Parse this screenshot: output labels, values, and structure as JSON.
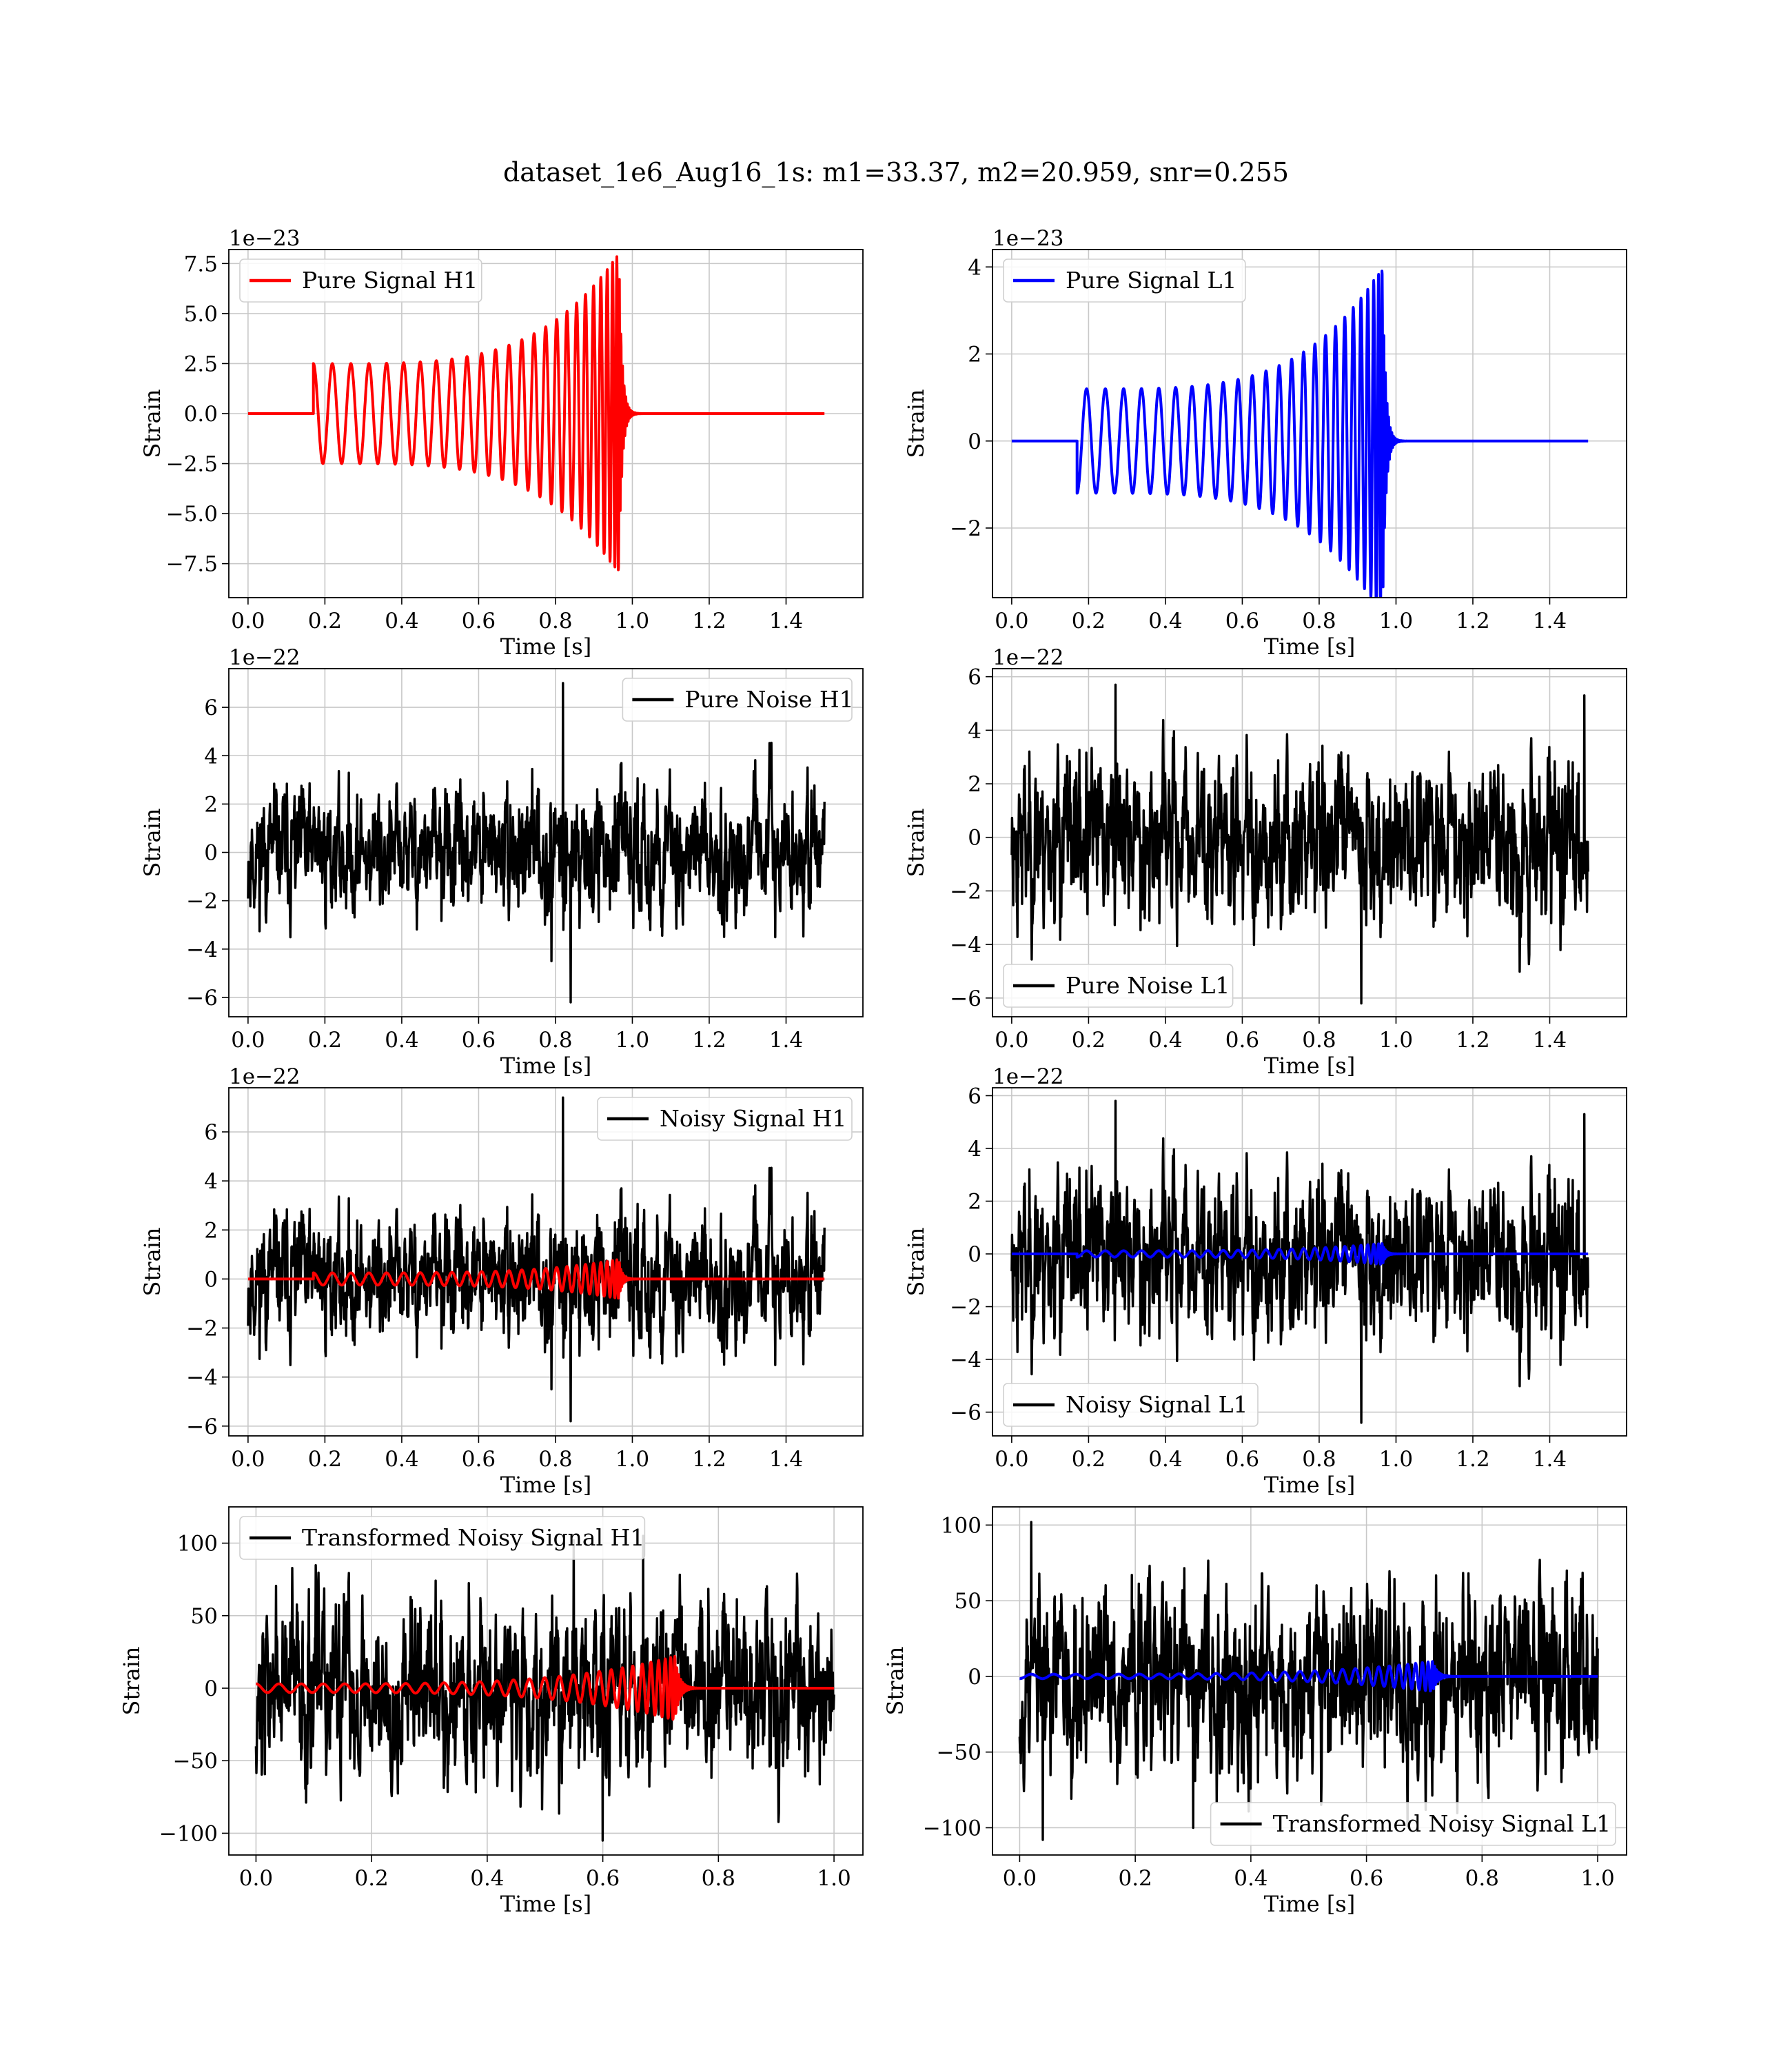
{
  "figure": {
    "title": "dataset_1e6_Aug16_1s: m1=33.37, m2=20.959, snr=0.255",
    "colors": {
      "h1_signal": "#ff0000",
      "l1_signal": "#0000ff",
      "noise": "#000000",
      "grid": "#c8c8c8"
    }
  },
  "chart_data": [
    {
      "type": "line",
      "title": "",
      "xlabel": "Time [s]",
      "ylabel": "Strain",
      "scale_label": "1e−23",
      "xlim": [
        -0.05,
        1.6
      ],
      "ylim": [
        -9.2,
        8.2
      ],
      "xticks": [
        0.0,
        0.2,
        0.4,
        0.6,
        0.8,
        1.0,
        1.2,
        1.4
      ],
      "xtick_labels": [
        "0.0",
        "0.2",
        "0.4",
        "0.6",
        "0.8",
        "1.0",
        "1.2",
        "1.4"
      ],
      "yticks": [
        -7.5,
        -5.0,
        -2.5,
        0.0,
        2.5,
        5.0,
        7.5
      ],
      "ytick_labels": [
        "−7.5",
        "−5.0",
        "−2.5",
        "0.0",
        "2.5",
        "5.0",
        "7.5"
      ],
      "grid": true,
      "legend_position": "upper-left",
      "series": [
        {
          "name": "Pure Signal H1",
          "kind": "chirp",
          "color": "#ff0000",
          "t_start": 0.17,
          "t_merge": 0.965,
          "t_end": 1.5,
          "f0": 20,
          "amp_start": 2.5,
          "amp_peak": 8.0,
          "phase": 1.57
        }
      ]
    },
    {
      "type": "line",
      "title": "",
      "xlabel": "Time [s]",
      "ylabel": "Strain",
      "scale_label": "1e−23",
      "xlim": [
        -0.05,
        1.6
      ],
      "ylim": [
        -3.6,
        4.4
      ],
      "xticks": [
        0.0,
        0.2,
        0.4,
        0.6,
        0.8,
        1.0,
        1.2,
        1.4
      ],
      "xtick_labels": [
        "0.0",
        "0.2",
        "0.4",
        "0.6",
        "0.8",
        "1.0",
        "1.2",
        "1.4"
      ],
      "yticks": [
        -2,
        0,
        2,
        4
      ],
      "ytick_labels": [
        "−2",
        "0",
        "2",
        "4"
      ],
      "grid": true,
      "legend_position": "upper-left",
      "series": [
        {
          "name": "Pure Signal L1",
          "kind": "chirp",
          "color": "#0000ff",
          "t_start": 0.17,
          "t_merge": 0.965,
          "t_end": 1.5,
          "f0": 20,
          "amp_start": 1.2,
          "amp_peak": 4.0,
          "phase": -1.57
        }
      ]
    },
    {
      "type": "line",
      "title": "",
      "xlabel": "Time [s]",
      "ylabel": "Strain",
      "scale_label": "1e−22",
      "xlim": [
        -0.05,
        1.6
      ],
      "ylim": [
        -6.8,
        7.6
      ],
      "xticks": [
        0.0,
        0.2,
        0.4,
        0.6,
        0.8,
        1.0,
        1.2,
        1.4
      ],
      "xtick_labels": [
        "0.0",
        "0.2",
        "0.4",
        "0.6",
        "0.8",
        "1.0",
        "1.2",
        "1.4"
      ],
      "yticks": [
        -6,
        -4,
        -2,
        0,
        2,
        4,
        6
      ],
      "ytick_labels": [
        "−6",
        "−4",
        "−2",
        "0",
        "2",
        "4",
        "6"
      ],
      "grid": true,
      "legend_position": "upper-right",
      "series": [
        {
          "name": "Pure Noise H1",
          "kind": "noise",
          "color": "#000000",
          "t_start": 0.0,
          "t_end": 1.5,
          "sigma": 1.25,
          "seed": 11,
          "n": 1500,
          "spikes": [
            [
              0.82,
              7.0
            ],
            [
              0.84,
              -6.2
            ],
            [
              0.79,
              -4.5
            ]
          ]
        }
      ]
    },
    {
      "type": "line",
      "title": "",
      "xlabel": "Time [s]",
      "ylabel": "Strain",
      "scale_label": "1e−22",
      "xlim": [
        -0.05,
        1.6
      ],
      "ylim": [
        -6.7,
        6.3
      ],
      "xticks": [
        0.0,
        0.2,
        0.4,
        0.6,
        0.8,
        1.0,
        1.2,
        1.4
      ],
      "xtick_labels": [
        "0.0",
        "0.2",
        "0.4",
        "0.6",
        "0.8",
        "1.0",
        "1.2",
        "1.4"
      ],
      "yticks": [
        -6,
        -4,
        -2,
        0,
        2,
        4,
        6
      ],
      "ytick_labels": [
        "−6",
        "−4",
        "−2",
        "0",
        "2",
        "4",
        "6"
      ],
      "grid": true,
      "legend_position": "lower-left",
      "series": [
        {
          "name": "Pure Noise L1",
          "kind": "noise",
          "color": "#000000",
          "t_start": 0.0,
          "t_end": 1.5,
          "sigma": 1.5,
          "seed": 23,
          "n": 1500,
          "spikes": [
            [
              0.27,
              5.7
            ],
            [
              0.91,
              -6.2
            ],
            [
              1.49,
              5.3
            ]
          ]
        }
      ]
    },
    {
      "type": "line",
      "title": "",
      "xlabel": "Time [s]",
      "ylabel": "Strain",
      "scale_label": "1e−22",
      "xlim": [
        -0.05,
        1.6
      ],
      "ylim": [
        -6.4,
        7.8
      ],
      "xticks": [
        0.0,
        0.2,
        0.4,
        0.6,
        0.8,
        1.0,
        1.2,
        1.4
      ],
      "xtick_labels": [
        "0.0",
        "0.2",
        "0.4",
        "0.6",
        "0.8",
        "1.0",
        "1.2",
        "1.4"
      ],
      "yticks": [
        -6,
        -4,
        -2,
        0,
        2,
        4,
        6
      ],
      "ytick_labels": [
        "−6",
        "−4",
        "−2",
        "0",
        "2",
        "4",
        "6"
      ],
      "grid": true,
      "legend_position": "upper-right",
      "series": [
        {
          "name": "Noisy Signal H1",
          "kind": "noise",
          "color": "#000000",
          "t_start": 0.0,
          "t_end": 1.5,
          "sigma": 1.25,
          "seed": 11,
          "n": 1500,
          "spikes": [
            [
              0.82,
              7.4
            ],
            [
              0.84,
              -5.8
            ],
            [
              0.79,
              -4.5
            ]
          ]
        },
        {
          "kind": "chirp",
          "color": "#ff0000",
          "t_start": 0.17,
          "t_merge": 0.965,
          "t_end": 1.5,
          "f0": 20,
          "amp_start": 0.25,
          "amp_peak": 0.8,
          "phase": 1.57
        }
      ]
    },
    {
      "type": "line",
      "title": "",
      "xlabel": "Time [s]",
      "ylabel": "Strain",
      "scale_label": "1e−22",
      "xlim": [
        -0.05,
        1.6
      ],
      "ylim": [
        -6.9,
        6.3
      ],
      "xticks": [
        0.0,
        0.2,
        0.4,
        0.6,
        0.8,
        1.0,
        1.2,
        1.4
      ],
      "xtick_labels": [
        "0.0",
        "0.2",
        "0.4",
        "0.6",
        "0.8",
        "1.0",
        "1.2",
        "1.4"
      ],
      "yticks": [
        -6,
        -4,
        -2,
        0,
        2,
        4,
        6
      ],
      "ytick_labels": [
        "−6",
        "−4",
        "−2",
        "0",
        "2",
        "4",
        "6"
      ],
      "grid": true,
      "legend_position": "lower-left",
      "series": [
        {
          "name": "Noisy Signal L1",
          "kind": "noise",
          "color": "#000000",
          "t_start": 0.0,
          "t_end": 1.5,
          "sigma": 1.5,
          "seed": 23,
          "n": 1500,
          "spikes": [
            [
              0.27,
              5.8
            ],
            [
              0.91,
              -6.4
            ],
            [
              1.49,
              5.3
            ]
          ]
        },
        {
          "kind": "chirp",
          "color": "#0000ff",
          "t_start": 0.17,
          "t_merge": 0.965,
          "t_end": 1.5,
          "f0": 20,
          "amp_start": 0.12,
          "amp_peak": 0.4,
          "phase": -1.57
        }
      ]
    },
    {
      "type": "line",
      "title": "",
      "xlabel": "Time [s]",
      "ylabel": "Strain",
      "scale_label": "",
      "xlim": [
        -0.047,
        1.05
      ],
      "ylim": [
        -115,
        125
      ],
      "xticks": [
        0.0,
        0.2,
        0.4,
        0.6,
        0.8,
        1.0
      ],
      "xtick_labels": [
        "0.0",
        "0.2",
        "0.4",
        "0.6",
        "0.8",
        "1.0"
      ],
      "yticks": [
        -100,
        -50,
        0,
        50,
        100
      ],
      "ytick_labels": [
        "−100",
        "−50",
        "0",
        "50",
        "100"
      ],
      "grid": true,
      "legend_position": "upper-left",
      "series": [
        {
          "name": "Transformed Noisy Signal H1",
          "kind": "noise",
          "color": "#000000",
          "t_start": 0.0,
          "t_end": 1.0,
          "sigma": 30,
          "seed": 37,
          "n": 1500,
          "spikes": [
            [
              0.6,
              -105
            ],
            [
              0.67,
              105
            ],
            [
              0.55,
              102
            ]
          ]
        },
        {
          "kind": "chirp",
          "color": "#ff0000",
          "t_start": 0.0,
          "t_merge": 0.725,
          "t_end": 1.0,
          "f0": 25,
          "amp_start": 3,
          "amp_peak": 22,
          "phase": 1.57
        }
      ]
    },
    {
      "type": "line",
      "title": "",
      "xlabel": "Time [s]",
      "ylabel": "Strain",
      "scale_label": "",
      "xlim": [
        -0.047,
        1.05
      ],
      "ylim": [
        -118,
        112
      ],
      "xticks": [
        0.0,
        0.2,
        0.4,
        0.6,
        0.8,
        1.0
      ],
      "xtick_labels": [
        "0.0",
        "0.2",
        "0.4",
        "0.6",
        "0.8",
        "1.0"
      ],
      "yticks": [
        -100,
        -50,
        0,
        50,
        100
      ],
      "ytick_labels": [
        "−100",
        "−50",
        "0",
        "50",
        "100"
      ],
      "grid": true,
      "legend_position": "lower-right",
      "series": [
        {
          "name": "Transformed Noisy Signal L1",
          "kind": "noise",
          "color": "#000000",
          "t_start": 0.0,
          "t_end": 1.0,
          "sigma": 30,
          "seed": 53,
          "n": 1500,
          "spikes": [
            [
              0.02,
              102
            ],
            [
              0.04,
              -108
            ],
            [
              0.3,
              -100
            ]
          ]
        },
        {
          "kind": "chirp",
          "color": "#0000ff",
          "t_start": 0.0,
          "t_merge": 0.715,
          "t_end": 1.0,
          "f0": 25,
          "amp_start": 1.5,
          "amp_peak": 10,
          "phase": -1.57
        }
      ]
    }
  ]
}
